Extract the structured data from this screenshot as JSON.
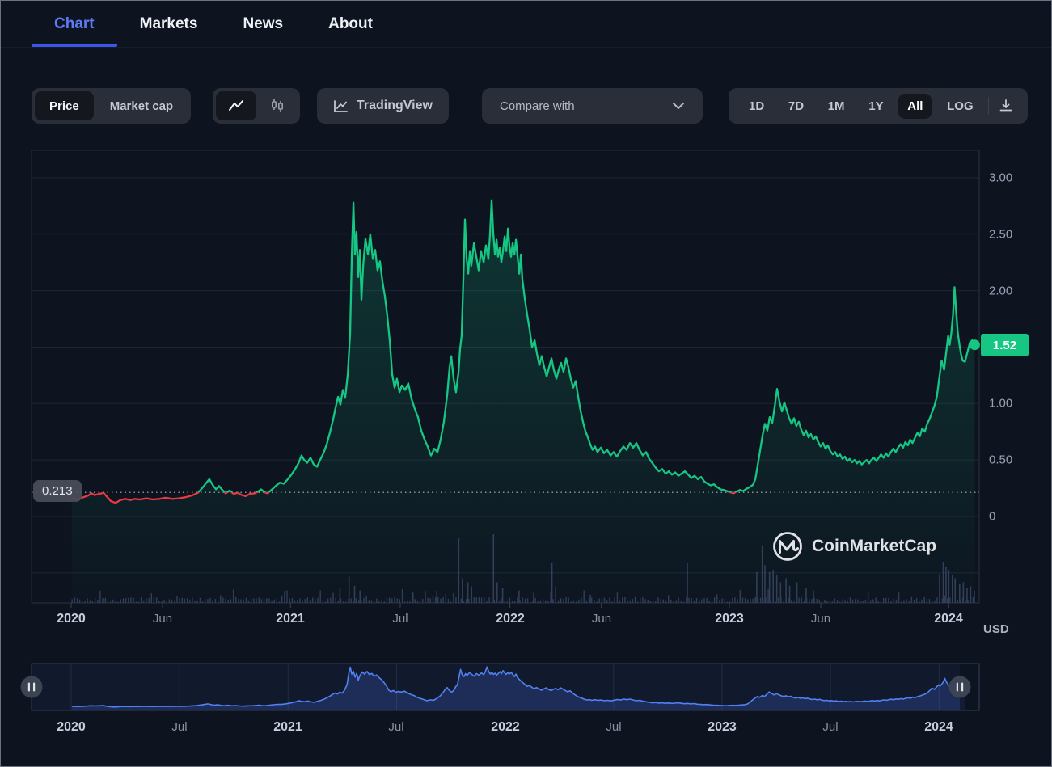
{
  "tabs": {
    "items": [
      {
        "label": "Chart",
        "active": true
      },
      {
        "label": "Markets",
        "active": false
      },
      {
        "label": "News",
        "active": false
      },
      {
        "label": "About",
        "active": false
      }
    ]
  },
  "toolbar": {
    "price_label": "Price",
    "market_cap_label": "Market cap",
    "tradingview_label": "TradingView",
    "compare_label": "Compare with",
    "range_buttons": [
      {
        "label": "1D",
        "active": false
      },
      {
        "label": "7D",
        "active": false
      },
      {
        "label": "1M",
        "active": false
      },
      {
        "label": "1Y",
        "active": false
      },
      {
        "label": "All",
        "active": true
      },
      {
        "label": "LOG",
        "active": false
      }
    ]
  },
  "watermark": {
    "label": "CoinMarketCap"
  },
  "colors": {
    "up_green": "#16c784",
    "down_red": "#ea3943",
    "brush_blue": "#5281f2",
    "accent_blue": "#3a57e8",
    "volume_bar": "#3b4867"
  },
  "chart_data": {
    "type": "line",
    "unit_label": "USD",
    "current_price": 1.52,
    "current_price_label": "1.52",
    "threshold": 0.213,
    "threshold_label": "0.213",
    "ylim": [
      0,
      3.24
    ],
    "grid_values": [
      3.0,
      2.5,
      2.0,
      1.5,
      1.0,
      0.5,
      0,
      -0.5
    ],
    "y_ticks": [
      {
        "label": "3.00",
        "value": 3.0
      },
      {
        "label": "2.50",
        "value": 2.5
      },
      {
        "label": "2.00",
        "value": 2.0
      },
      {
        "label": "1.00",
        "value": 1.0
      },
      {
        "label": "0.50",
        "value": 0.5
      },
      {
        "label": "0",
        "value": 0
      }
    ],
    "x_ticks_main": [
      {
        "label": "2020",
        "month": 0,
        "bold": true
      },
      {
        "label": "Jun",
        "month": 5,
        "bold": false
      },
      {
        "label": "2021",
        "month": 12,
        "bold": true
      },
      {
        "label": "Jul",
        "month": 18,
        "bold": false
      },
      {
        "label": "2022",
        "month": 24,
        "bold": true
      },
      {
        "label": "Jun",
        "month": 29,
        "bold": false
      },
      {
        "label": "2023",
        "month": 36,
        "bold": true
      },
      {
        "label": "Jun",
        "month": 41,
        "bold": false
      },
      {
        "label": "2024",
        "month": 48,
        "bold": true
      }
    ],
    "x_ticks_brush": [
      {
        "label": "2020",
        "month": 0,
        "bold": true
      },
      {
        "label": "Jul",
        "month": 6,
        "bold": false
      },
      {
        "label": "2021",
        "month": 12,
        "bold": true
      },
      {
        "label": "Jul",
        "month": 18,
        "bold": false
      },
      {
        "label": "2022",
        "month": 24,
        "bold": true
      },
      {
        "label": "Jul",
        "month": 30,
        "bold": false
      },
      {
        "label": "2023",
        "month": 36,
        "bold": true
      },
      {
        "label": "Jul",
        "month": 42,
        "bold": false
      },
      {
        "label": "2024",
        "month": 48,
        "bold": true
      }
    ],
    "points": [
      [
        0.04,
        0.16
      ],
      [
        0.35,
        0.15
      ],
      [
        0.66,
        0.17
      ],
      [
        0.93,
        0.185
      ],
      [
        1.11,
        0.205
      ],
      [
        1.28,
        0.19
      ],
      [
        1.55,
        0.2
      ],
      [
        1.77,
        0.21
      ],
      [
        1.99,
        0.17
      ],
      [
        2.17,
        0.135
      ],
      [
        2.43,
        0.12
      ],
      [
        2.7,
        0.145
      ],
      [
        2.96,
        0.155
      ],
      [
        3.23,
        0.145
      ],
      [
        3.49,
        0.155
      ],
      [
        3.76,
        0.15
      ],
      [
        4.11,
        0.16
      ],
      [
        4.47,
        0.15
      ],
      [
        4.82,
        0.155
      ],
      [
        5.17,
        0.165
      ],
      [
        5.53,
        0.155
      ],
      [
        5.88,
        0.16
      ],
      [
        6.24,
        0.17
      ],
      [
        6.59,
        0.185
      ],
      [
        6.94,
        0.21
      ],
      [
        7.21,
        0.26
      ],
      [
        7.43,
        0.305
      ],
      [
        7.56,
        0.33
      ],
      [
        7.74,
        0.28
      ],
      [
        7.92,
        0.24
      ],
      [
        8.09,
        0.27
      ],
      [
        8.27,
        0.235
      ],
      [
        8.45,
        0.205
      ],
      [
        8.67,
        0.23
      ],
      [
        8.89,
        0.2
      ],
      [
        9.11,
        0.21
      ],
      [
        9.33,
        0.19
      ],
      [
        9.55,
        0.18
      ],
      [
        9.77,
        0.2
      ],
      [
        10.04,
        0.205
      ],
      [
        10.22,
        0.22
      ],
      [
        10.39,
        0.24
      ],
      [
        10.57,
        0.215
      ],
      [
        10.75,
        0.205
      ],
      [
        10.92,
        0.23
      ],
      [
        11.19,
        0.27
      ],
      [
        11.41,
        0.3
      ],
      [
        11.63,
        0.29
      ],
      [
        11.85,
        0.33
      ],
      [
        12.07,
        0.375
      ],
      [
        12.25,
        0.42
      ],
      [
        12.43,
        0.47
      ],
      [
        12.6,
        0.54
      ],
      [
        12.74,
        0.5
      ],
      [
        12.91,
        0.475
      ],
      [
        13.09,
        0.52
      ],
      [
        13.27,
        0.46
      ],
      [
        13.45,
        0.44
      ],
      [
        13.62,
        0.5
      ],
      [
        13.8,
        0.56
      ],
      [
        13.98,
        0.64
      ],
      [
        14.15,
        0.74
      ],
      [
        14.33,
        0.86
      ],
      [
        14.46,
        0.96
      ],
      [
        14.6,
        1.06
      ],
      [
        14.73,
        0.99
      ],
      [
        14.86,
        1.12
      ],
      [
        14.99,
        1.05
      ],
      [
        15.13,
        1.26
      ],
      [
        15.26,
        1.62
      ],
      [
        15.35,
        2.32
      ],
      [
        15.44,
        2.78
      ],
      [
        15.52,
        2.32
      ],
      [
        15.61,
        2.52
      ],
      [
        15.7,
        2.12
      ],
      [
        15.79,
        2.36
      ],
      [
        15.88,
        1.92
      ],
      [
        15.97,
        2.22
      ],
      [
        16.1,
        2.46
      ],
      [
        16.23,
        2.32
      ],
      [
        16.36,
        2.5
      ],
      [
        16.5,
        2.28
      ],
      [
        16.63,
        2.36
      ],
      [
        16.76,
        2.18
      ],
      [
        16.89,
        2.26
      ],
      [
        17.03,
        2.08
      ],
      [
        17.16,
        1.95
      ],
      [
        17.29,
        1.78
      ],
      [
        17.43,
        1.55
      ],
      [
        17.56,
        1.26
      ],
      [
        17.69,
        1.14
      ],
      [
        17.82,
        1.22
      ],
      [
        17.96,
        1.1
      ],
      [
        18.09,
        1.16
      ],
      [
        18.27,
        1.12
      ],
      [
        18.44,
        1.18
      ],
      [
        18.62,
        1.04
      ],
      [
        18.8,
        0.95
      ],
      [
        18.97,
        0.88
      ],
      [
        19.15,
        0.76
      ],
      [
        19.33,
        0.68
      ],
      [
        19.5,
        0.62
      ],
      [
        19.68,
        0.54
      ],
      [
        19.86,
        0.6
      ],
      [
        20.04,
        0.57
      ],
      [
        20.21,
        0.68
      ],
      [
        20.39,
        0.84
      ],
      [
        20.57,
        1.08
      ],
      [
        20.7,
        1.32
      ],
      [
        20.79,
        1.42
      ],
      [
        20.92,
        1.22
      ],
      [
        21.05,
        1.1
      ],
      [
        21.19,
        1.28
      ],
      [
        21.27,
        1.48
      ],
      [
        21.36,
        1.6
      ],
      [
        21.45,
        2.1
      ],
      [
        21.54,
        2.63
      ],
      [
        21.63,
        2.28
      ],
      [
        21.72,
        2.15
      ],
      [
        21.81,
        2.35
      ],
      [
        21.89,
        2.22
      ],
      [
        22.03,
        2.42
      ],
      [
        22.16,
        2.3
      ],
      [
        22.29,
        2.18
      ],
      [
        22.42,
        2.35
      ],
      [
        22.56,
        2.25
      ],
      [
        22.69,
        2.4
      ],
      [
        22.82,
        2.28
      ],
      [
        22.91,
        2.5
      ],
      [
        23.0,
        2.8
      ],
      [
        23.09,
        2.5
      ],
      [
        23.18,
        2.32
      ],
      [
        23.27,
        2.45
      ],
      [
        23.35,
        2.3
      ],
      [
        23.44,
        2.38
      ],
      [
        23.53,
        2.25
      ],
      [
        23.62,
        2.35
      ],
      [
        23.71,
        2.48
      ],
      [
        23.8,
        2.35
      ],
      [
        23.89,
        2.55
      ],
      [
        23.97,
        2.4
      ],
      [
        24.06,
        2.3
      ],
      [
        24.15,
        2.42
      ],
      [
        24.24,
        2.32
      ],
      [
        24.33,
        2.45
      ],
      [
        24.42,
        2.3
      ],
      [
        24.51,
        2.15
      ],
      [
        24.6,
        2.32
      ],
      [
        24.68,
        2.1
      ],
      [
        24.82,
        1.92
      ],
      [
        24.95,
        1.78
      ],
      [
        25.08,
        1.65
      ],
      [
        25.21,
        1.5
      ],
      [
        25.35,
        1.56
      ],
      [
        25.48,
        1.44
      ],
      [
        25.61,
        1.34
      ],
      [
        25.74,
        1.42
      ],
      [
        25.88,
        1.32
      ],
      [
        26.01,
        1.24
      ],
      [
        26.14,
        1.32
      ],
      [
        26.27,
        1.4
      ],
      [
        26.4,
        1.3
      ],
      [
        26.54,
        1.22
      ],
      [
        26.67,
        1.3
      ],
      [
        26.8,
        1.36
      ],
      [
        26.93,
        1.28
      ],
      [
        27.07,
        1.4
      ],
      [
        27.2,
        1.32
      ],
      [
        27.33,
        1.22
      ],
      [
        27.46,
        1.14
      ],
      [
        27.6,
        1.2
      ],
      [
        27.73,
        1.06
      ],
      [
        27.86,
        0.94
      ],
      [
        27.99,
        0.84
      ],
      [
        28.12,
        0.76
      ],
      [
        28.26,
        0.7
      ],
      [
        28.39,
        0.64
      ],
      [
        28.52,
        0.59
      ],
      [
        28.65,
        0.62
      ],
      [
        28.79,
        0.57
      ],
      [
        28.97,
        0.61
      ],
      [
        29.14,
        0.56
      ],
      [
        29.32,
        0.59
      ],
      [
        29.5,
        0.54
      ],
      [
        29.67,
        0.57
      ],
      [
        29.85,
        0.53
      ],
      [
        30.03,
        0.58
      ],
      [
        30.21,
        0.62
      ],
      [
        30.38,
        0.59
      ],
      [
        30.56,
        0.65
      ],
      [
        30.74,
        0.61
      ],
      [
        30.92,
        0.65
      ],
      [
        31.09,
        0.59
      ],
      [
        31.27,
        0.54
      ],
      [
        31.45,
        0.57
      ],
      [
        31.62,
        0.51
      ],
      [
        31.8,
        0.47
      ],
      [
        31.98,
        0.43
      ],
      [
        32.15,
        0.4
      ],
      [
        32.33,
        0.42
      ],
      [
        32.51,
        0.38
      ],
      [
        32.69,
        0.4
      ],
      [
        32.86,
        0.37
      ],
      [
        33.04,
        0.39
      ],
      [
        33.22,
        0.36
      ],
      [
        33.39,
        0.38
      ],
      [
        33.57,
        0.4
      ],
      [
        33.75,
        0.37
      ],
      [
        33.92,
        0.34
      ],
      [
        34.1,
        0.36
      ],
      [
        34.28,
        0.33
      ],
      [
        34.46,
        0.35
      ],
      [
        34.63,
        0.31
      ],
      [
        34.81,
        0.29
      ],
      [
        34.99,
        0.275
      ],
      [
        35.16,
        0.285
      ],
      [
        35.34,
        0.26
      ],
      [
        35.52,
        0.24
      ],
      [
        35.7,
        0.235
      ],
      [
        35.87,
        0.225
      ],
      [
        36.05,
        0.215
      ],
      [
        36.23,
        0.205
      ],
      [
        36.4,
        0.22
      ],
      [
        36.58,
        0.235
      ],
      [
        36.76,
        0.225
      ],
      [
        36.93,
        0.245
      ],
      [
        37.11,
        0.26
      ],
      [
        37.29,
        0.28
      ],
      [
        37.42,
        0.33
      ],
      [
        37.55,
        0.45
      ],
      [
        37.68,
        0.58
      ],
      [
        37.82,
        0.72
      ],
      [
        37.95,
        0.82
      ],
      [
        38.08,
        0.76
      ],
      [
        38.21,
        0.88
      ],
      [
        38.35,
        0.83
      ],
      [
        38.48,
        0.97
      ],
      [
        38.61,
        1.13
      ],
      [
        38.74,
        1.02
      ],
      [
        38.88,
        0.93
      ],
      [
        39.01,
        1.01
      ],
      [
        39.14,
        0.94
      ],
      [
        39.27,
        0.87
      ],
      [
        39.41,
        0.82
      ],
      [
        39.54,
        0.87
      ],
      [
        39.67,
        0.8
      ],
      [
        39.8,
        0.84
      ],
      [
        39.93,
        0.77
      ],
      [
        40.07,
        0.72
      ],
      [
        40.2,
        0.76
      ],
      [
        40.33,
        0.7
      ],
      [
        40.46,
        0.73
      ],
      [
        40.6,
        0.68
      ],
      [
        40.73,
        0.71
      ],
      [
        40.86,
        0.66
      ],
      [
        40.99,
        0.62
      ],
      [
        41.13,
        0.65
      ],
      [
        41.26,
        0.6
      ],
      [
        41.39,
        0.63
      ],
      [
        41.52,
        0.58
      ],
      [
        41.66,
        0.55
      ],
      [
        41.79,
        0.57
      ],
      [
        41.92,
        0.53
      ],
      [
        42.05,
        0.55
      ],
      [
        42.19,
        0.51
      ],
      [
        42.32,
        0.53
      ],
      [
        42.45,
        0.49
      ],
      [
        42.58,
        0.51
      ],
      [
        42.72,
        0.48
      ],
      [
        42.85,
        0.5
      ],
      [
        42.98,
        0.47
      ],
      [
        43.11,
        0.49
      ],
      [
        43.24,
        0.46
      ],
      [
        43.38,
        0.48
      ],
      [
        43.51,
        0.5
      ],
      [
        43.64,
        0.47
      ],
      [
        43.77,
        0.5
      ],
      [
        43.91,
        0.52
      ],
      [
        44.04,
        0.49
      ],
      [
        44.17,
        0.52
      ],
      [
        44.3,
        0.55
      ],
      [
        44.44,
        0.52
      ],
      [
        44.57,
        0.56
      ],
      [
        44.7,
        0.53
      ],
      [
        44.83,
        0.57
      ],
      [
        44.97,
        0.6
      ],
      [
        45.1,
        0.57
      ],
      [
        45.23,
        0.61
      ],
      [
        45.36,
        0.64
      ],
      [
        45.5,
        0.61
      ],
      [
        45.63,
        0.66
      ],
      [
        45.76,
        0.63
      ],
      [
        45.89,
        0.68
      ],
      [
        46.02,
        0.65
      ],
      [
        46.16,
        0.7
      ],
      [
        46.29,
        0.74
      ],
      [
        46.42,
        0.71
      ],
      [
        46.55,
        0.78
      ],
      [
        46.69,
        0.75
      ],
      [
        46.82,
        0.82
      ],
      [
        46.95,
        0.86
      ],
      [
        47.08,
        0.92
      ],
      [
        47.22,
        0.98
      ],
      [
        47.35,
        1.06
      ],
      [
        47.48,
        1.22
      ],
      [
        47.61,
        1.38
      ],
      [
        47.75,
        1.3
      ],
      [
        47.88,
        1.48
      ],
      [
        47.97,
        1.6
      ],
      [
        48.05,
        1.52
      ],
      [
        48.14,
        1.62
      ],
      [
        48.23,
        1.78
      ],
      [
        48.32,
        2.03
      ],
      [
        48.41,
        1.8
      ],
      [
        48.5,
        1.62
      ],
      [
        48.59,
        1.52
      ],
      [
        48.67,
        1.44
      ],
      [
        48.76,
        1.38
      ],
      [
        48.89,
        1.37
      ],
      [
        49.03,
        1.46
      ],
      [
        49.16,
        1.54
      ],
      [
        49.29,
        1.56
      ],
      [
        49.42,
        1.52
      ]
    ],
    "volume_spikes": [
      [
        14.7,
        0.22
      ],
      [
        15.2,
        0.38
      ],
      [
        15.5,
        0.25
      ],
      [
        15.8,
        0.18
      ],
      [
        18.7,
        0.15
      ],
      [
        20.0,
        0.18
      ],
      [
        21.2,
        0.94
      ],
      [
        21.4,
        0.36
      ],
      [
        21.7,
        0.3
      ],
      [
        21.9,
        0.24
      ],
      [
        23.1,
        1.0
      ],
      [
        23.3,
        0.3
      ],
      [
        23.6,
        0.22
      ],
      [
        24.5,
        0.18
      ],
      [
        25.3,
        0.15
      ],
      [
        26.3,
        0.58
      ],
      [
        26.5,
        0.24
      ],
      [
        28.4,
        0.12
      ],
      [
        33.7,
        0.58
      ],
      [
        37.5,
        0.45
      ],
      [
        37.8,
        0.84
      ],
      [
        37.95,
        0.55
      ],
      [
        38.2,
        0.45
      ],
      [
        38.4,
        0.48
      ],
      [
        38.6,
        0.4
      ],
      [
        38.8,
        0.3
      ],
      [
        39.1,
        0.36
      ],
      [
        39.3,
        0.25
      ],
      [
        39.7,
        0.3
      ],
      [
        40.2,
        0.22
      ],
      [
        40.6,
        0.18
      ],
      [
        47.5,
        0.42
      ],
      [
        47.7,
        0.6
      ],
      [
        47.85,
        0.52
      ],
      [
        48.0,
        0.48
      ],
      [
        48.2,
        0.4
      ],
      [
        48.35,
        0.36
      ],
      [
        48.6,
        0.28
      ],
      [
        48.8,
        0.3
      ],
      [
        49.0,
        0.22
      ],
      [
        49.2,
        0.24
      ],
      [
        49.4,
        0.18
      ]
    ],
    "volume_baseline": {
      "step_months": 0.14,
      "min": 0.015,
      "max": 0.085,
      "seed": 42
    }
  }
}
